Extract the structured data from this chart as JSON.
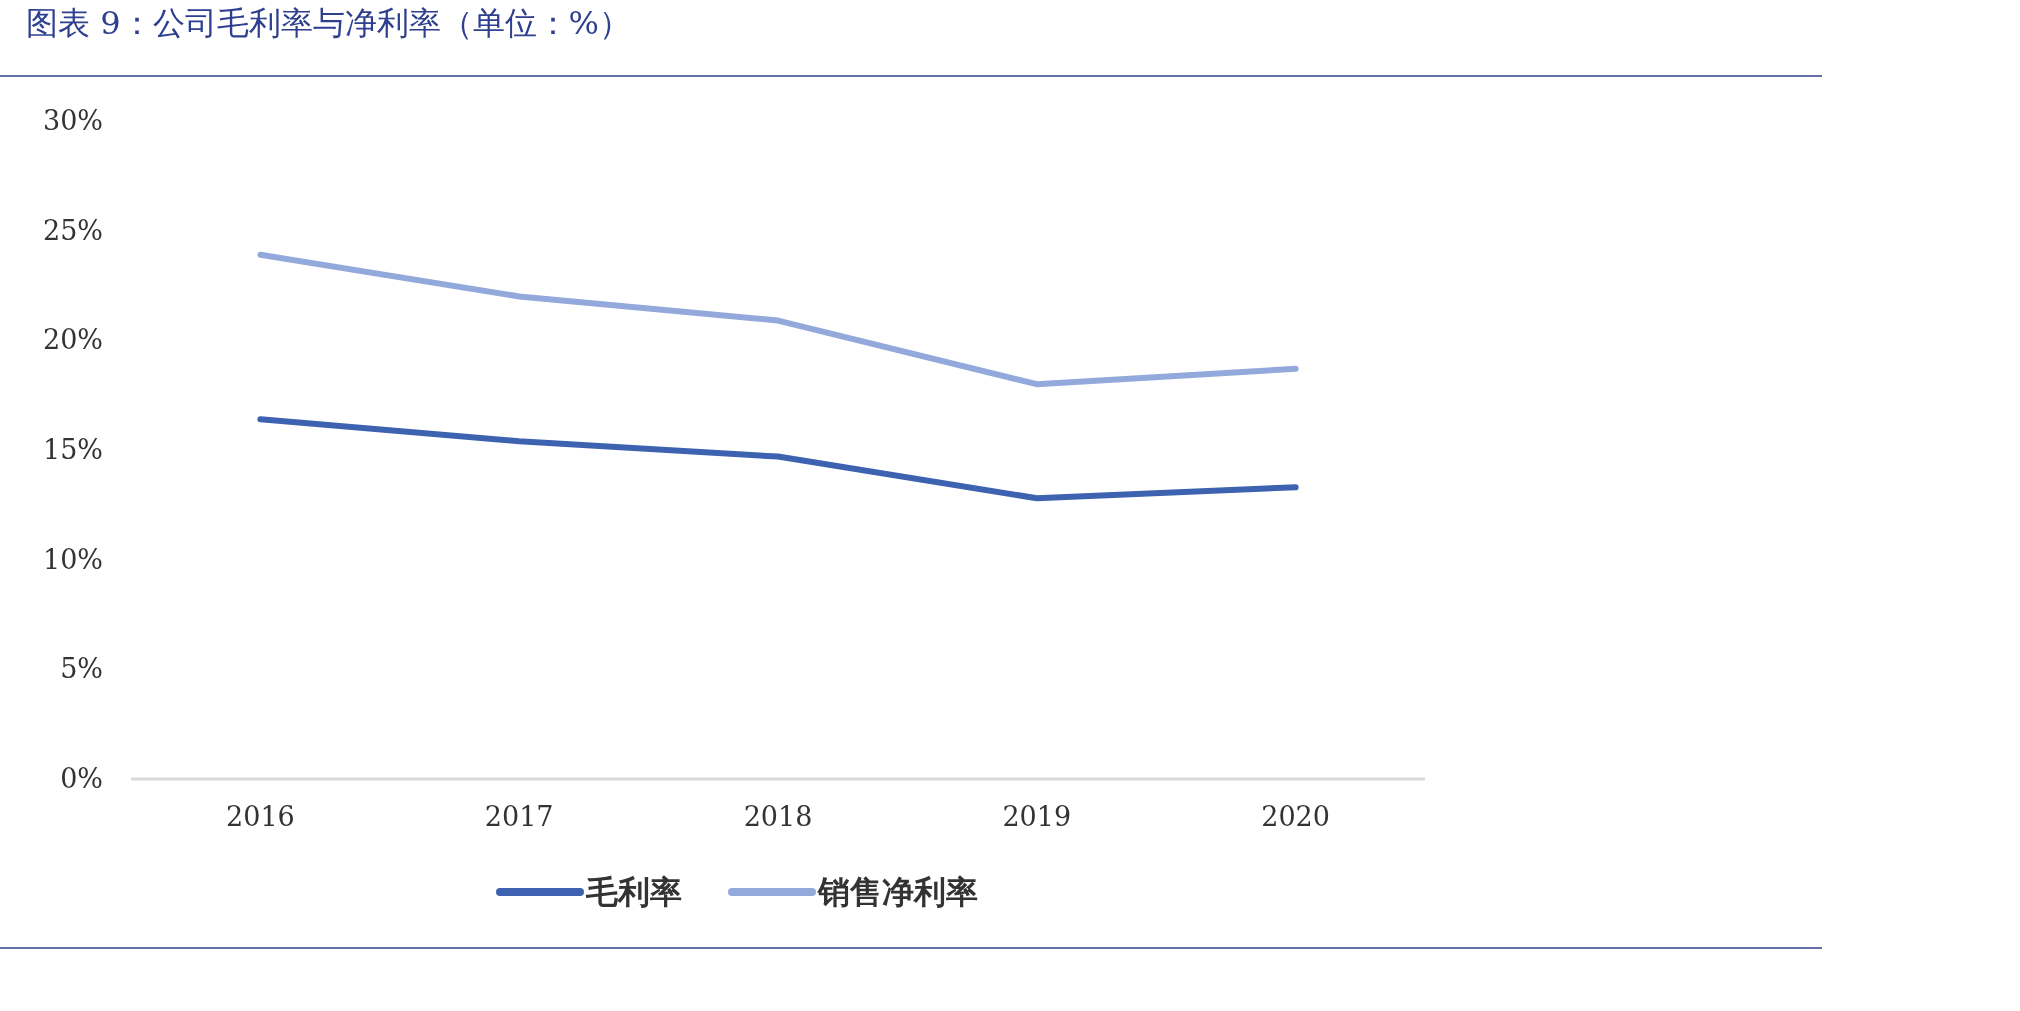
{
  "chart_data": {
    "type": "line",
    "title": "图表 9：公司毛利率与净利率（单位：%）",
    "categories": [
      "2016",
      "2017",
      "2018",
      "2019",
      "2020"
    ],
    "series": [
      {
        "name": "毛利率",
        "color": "#3d62b0",
        "values": [
          16.4,
          15.4,
          14.7,
          12.8,
          13.3
        ]
      },
      {
        "name": "销售净利率",
        "color": "#93a9dc",
        "values": [
          23.9,
          22.0,
          20.9,
          18.0,
          18.7
        ]
      }
    ],
    "ylim": [
      0,
      30
    ],
    "yticks": [
      {
        "value": 0,
        "label": "0%"
      },
      {
        "value": 5,
        "label": "5%"
      },
      {
        "value": 10,
        "label": "10%"
      },
      {
        "value": 15,
        "label": "15%"
      },
      {
        "value": 20,
        "label": "20%"
      },
      {
        "value": 25,
        "label": "25%"
      },
      {
        "value": 30,
        "label": "30%"
      }
    ],
    "legend": "bottom"
  }
}
